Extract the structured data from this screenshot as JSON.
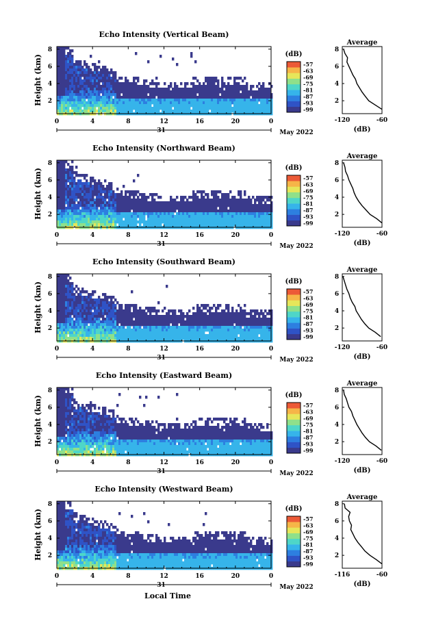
{
  "footer": {
    "xlabel": "Local Time"
  },
  "chart_data": [
    {
      "type": "heatmap",
      "title": "Echo Intensity (Vertical Beam)",
      "ylabel": "Height (km)",
      "yticks": [
        "2",
        "4",
        "6",
        "8"
      ],
      "ylim": [
        0.5,
        8.3
      ],
      "xticks": [
        "0",
        "4",
        "8",
        "12",
        "16",
        "20",
        "0"
      ],
      "xlim": [
        0,
        24
      ],
      "day_label": "31",
      "month_label": "May 2022",
      "colorbar": {
        "unit": "(dB)",
        "ticks": [
          "-57",
          "-63",
          "-69",
          "-75",
          "-81",
          "-87",
          "-93",
          "-99"
        ]
      },
      "profile": {
        "title": "Average",
        "xlabel": "(dB)",
        "xticks": [
          "-120",
          "-60"
        ],
        "xlim": [
          -120,
          -60
        ],
        "yticks": [
          "2",
          "4",
          "6",
          "8"
        ],
        "ylim": [
          0.5,
          8.3
        ],
        "height": [
          1.0,
          1.5,
          2.0,
          2.5,
          3.0,
          3.5,
          4.0,
          4.5,
          5.0,
          5.5,
          6.0,
          6.5,
          7.0,
          7.5,
          8.0
        ],
        "value": [
          -60,
          -70,
          -80,
          -85,
          -90,
          -94,
          -98,
          -100,
          -104,
          -107,
          -110,
          -113,
          -112,
          -116,
          -118
        ]
      }
    },
    {
      "type": "heatmap",
      "title": "Echo Intensity (Northward Beam)",
      "ylabel": "Height (km)",
      "yticks": [
        "2",
        "4",
        "6",
        "8"
      ],
      "ylim": [
        0.5,
        8.3
      ],
      "xticks": [
        "0",
        "4",
        "8",
        "12",
        "16",
        "20",
        "0"
      ],
      "xlim": [
        0,
        24
      ],
      "day_label": "31",
      "month_label": "May 2022",
      "colorbar": {
        "unit": "(dB)",
        "ticks": [
          "-57",
          "-63",
          "-69",
          "-75",
          "-81",
          "-87",
          "-93",
          "-99"
        ]
      },
      "profile": {
        "title": "Average",
        "xlabel": "(dB)",
        "xticks": [
          "-120",
          "-60"
        ],
        "xlim": [
          -120,
          -60
        ],
        "yticks": [
          "2",
          "4",
          "6",
          "8"
        ],
        "ylim": [
          0.5,
          8.3
        ],
        "height": [
          1.0,
          1.5,
          2.0,
          2.5,
          3.0,
          3.5,
          4.0,
          4.5,
          5.0,
          5.5,
          6.0,
          6.5,
          7.0,
          7.5,
          8.0
        ],
        "value": [
          -60,
          -68,
          -78,
          -84,
          -90,
          -95,
          -99,
          -102,
          -104,
          -107,
          -110,
          -112,
          -115,
          -116,
          -118
        ]
      }
    },
    {
      "type": "heatmap",
      "title": "Echo Intensity (Southward Beam)",
      "ylabel": "Height (km)",
      "yticks": [
        "2",
        "4",
        "6",
        "8"
      ],
      "ylim": [
        0.5,
        8.3
      ],
      "xticks": [
        "0",
        "4",
        "8",
        "12",
        "16",
        "20",
        "0"
      ],
      "xlim": [
        0,
        24
      ],
      "day_label": "31",
      "month_label": "May 2022",
      "colorbar": {
        "unit": "(dB)",
        "ticks": [
          "-57",
          "-63",
          "-69",
          "-75",
          "-81",
          "-87",
          "-93",
          "-99"
        ]
      },
      "profile": {
        "title": "Average",
        "xlabel": "(dB)",
        "xticks": [
          "-120",
          "-60"
        ],
        "xlim": [
          -120,
          -60
        ],
        "yticks": [
          "2",
          "4",
          "6",
          "8"
        ],
        "ylim": [
          0.5,
          8.3
        ],
        "height": [
          1.0,
          1.5,
          2.0,
          2.5,
          3.0,
          3.5,
          4.0,
          4.5,
          5.0,
          5.5,
          6.0,
          6.5,
          7.0,
          7.5,
          8.0
        ],
        "value": [
          -62,
          -70,
          -80,
          -86,
          -91,
          -95,
          -99,
          -101,
          -105,
          -108,
          -110,
          -113,
          -115,
          -117,
          -119
        ]
      }
    },
    {
      "type": "heatmap",
      "title": "Echo Intensity (Eastward Beam)",
      "ylabel": "Height (km)",
      "yticks": [
        "2",
        "4",
        "6",
        "8"
      ],
      "ylim": [
        0.5,
        8.3
      ],
      "xticks": [
        "0",
        "4",
        "8",
        "12",
        "16",
        "20",
        "0"
      ],
      "xlim": [
        0,
        24
      ],
      "day_label": "31",
      "month_label": "May 2022",
      "colorbar": {
        "unit": "(dB)",
        "ticks": [
          "-57",
          "-63",
          "-69",
          "-75",
          "-81",
          "-87",
          "-93",
          "-99"
        ]
      },
      "profile": {
        "title": "Average",
        "xlabel": "(dB)",
        "xticks": [
          "-120",
          "-60"
        ],
        "xlim": [
          -120,
          -60
        ],
        "yticks": [
          "2",
          "4",
          "6",
          "8"
        ],
        "ylim": [
          0.5,
          8.3
        ],
        "height": [
          1.0,
          1.5,
          2.0,
          2.5,
          3.0,
          3.5,
          4.0,
          4.5,
          5.0,
          5.5,
          6.0,
          6.5,
          7.0,
          7.5,
          8.0
        ],
        "value": [
          -61,
          -69,
          -79,
          -85,
          -90,
          -94,
          -98,
          -101,
          -104,
          -106,
          -110,
          -112,
          -114,
          -117,
          -118
        ]
      }
    },
    {
      "type": "heatmap",
      "title": "Echo Intensity (Westward Beam)",
      "ylabel": "Height (km)",
      "yticks": [
        "2",
        "4",
        "6",
        "8"
      ],
      "ylim": [
        0.5,
        8.3
      ],
      "xticks": [
        "0",
        "4",
        "8",
        "12",
        "16",
        "20",
        "0"
      ],
      "xlim": [
        0,
        24
      ],
      "day_label": "31",
      "month_label": "May 2022",
      "colorbar": {
        "unit": "(dB)",
        "ticks": [
          "-57",
          "-63",
          "-69",
          "-75",
          "-81",
          "-87",
          "-93",
          "-99"
        ]
      },
      "profile": {
        "title": "Average",
        "xlabel": "(dB)",
        "xticks": [
          "-116",
          "-60"
        ],
        "xlim": [
          -116,
          -60
        ],
        "yticks": [
          "2",
          "4",
          "6",
          "8"
        ],
        "ylim": [
          0.5,
          8.3
        ],
        "height": [
          1.0,
          1.5,
          2.0,
          2.5,
          3.0,
          3.5,
          4.0,
          4.5,
          5.0,
          5.5,
          6.0,
          6.5,
          7.0,
          7.5,
          8.0
        ],
        "value": [
          -60,
          -68,
          -77,
          -84,
          -89,
          -94,
          -98,
          -101,
          -104,
          -103,
          -106,
          -107,
          -105,
          -112,
          -113
        ]
      }
    }
  ]
}
